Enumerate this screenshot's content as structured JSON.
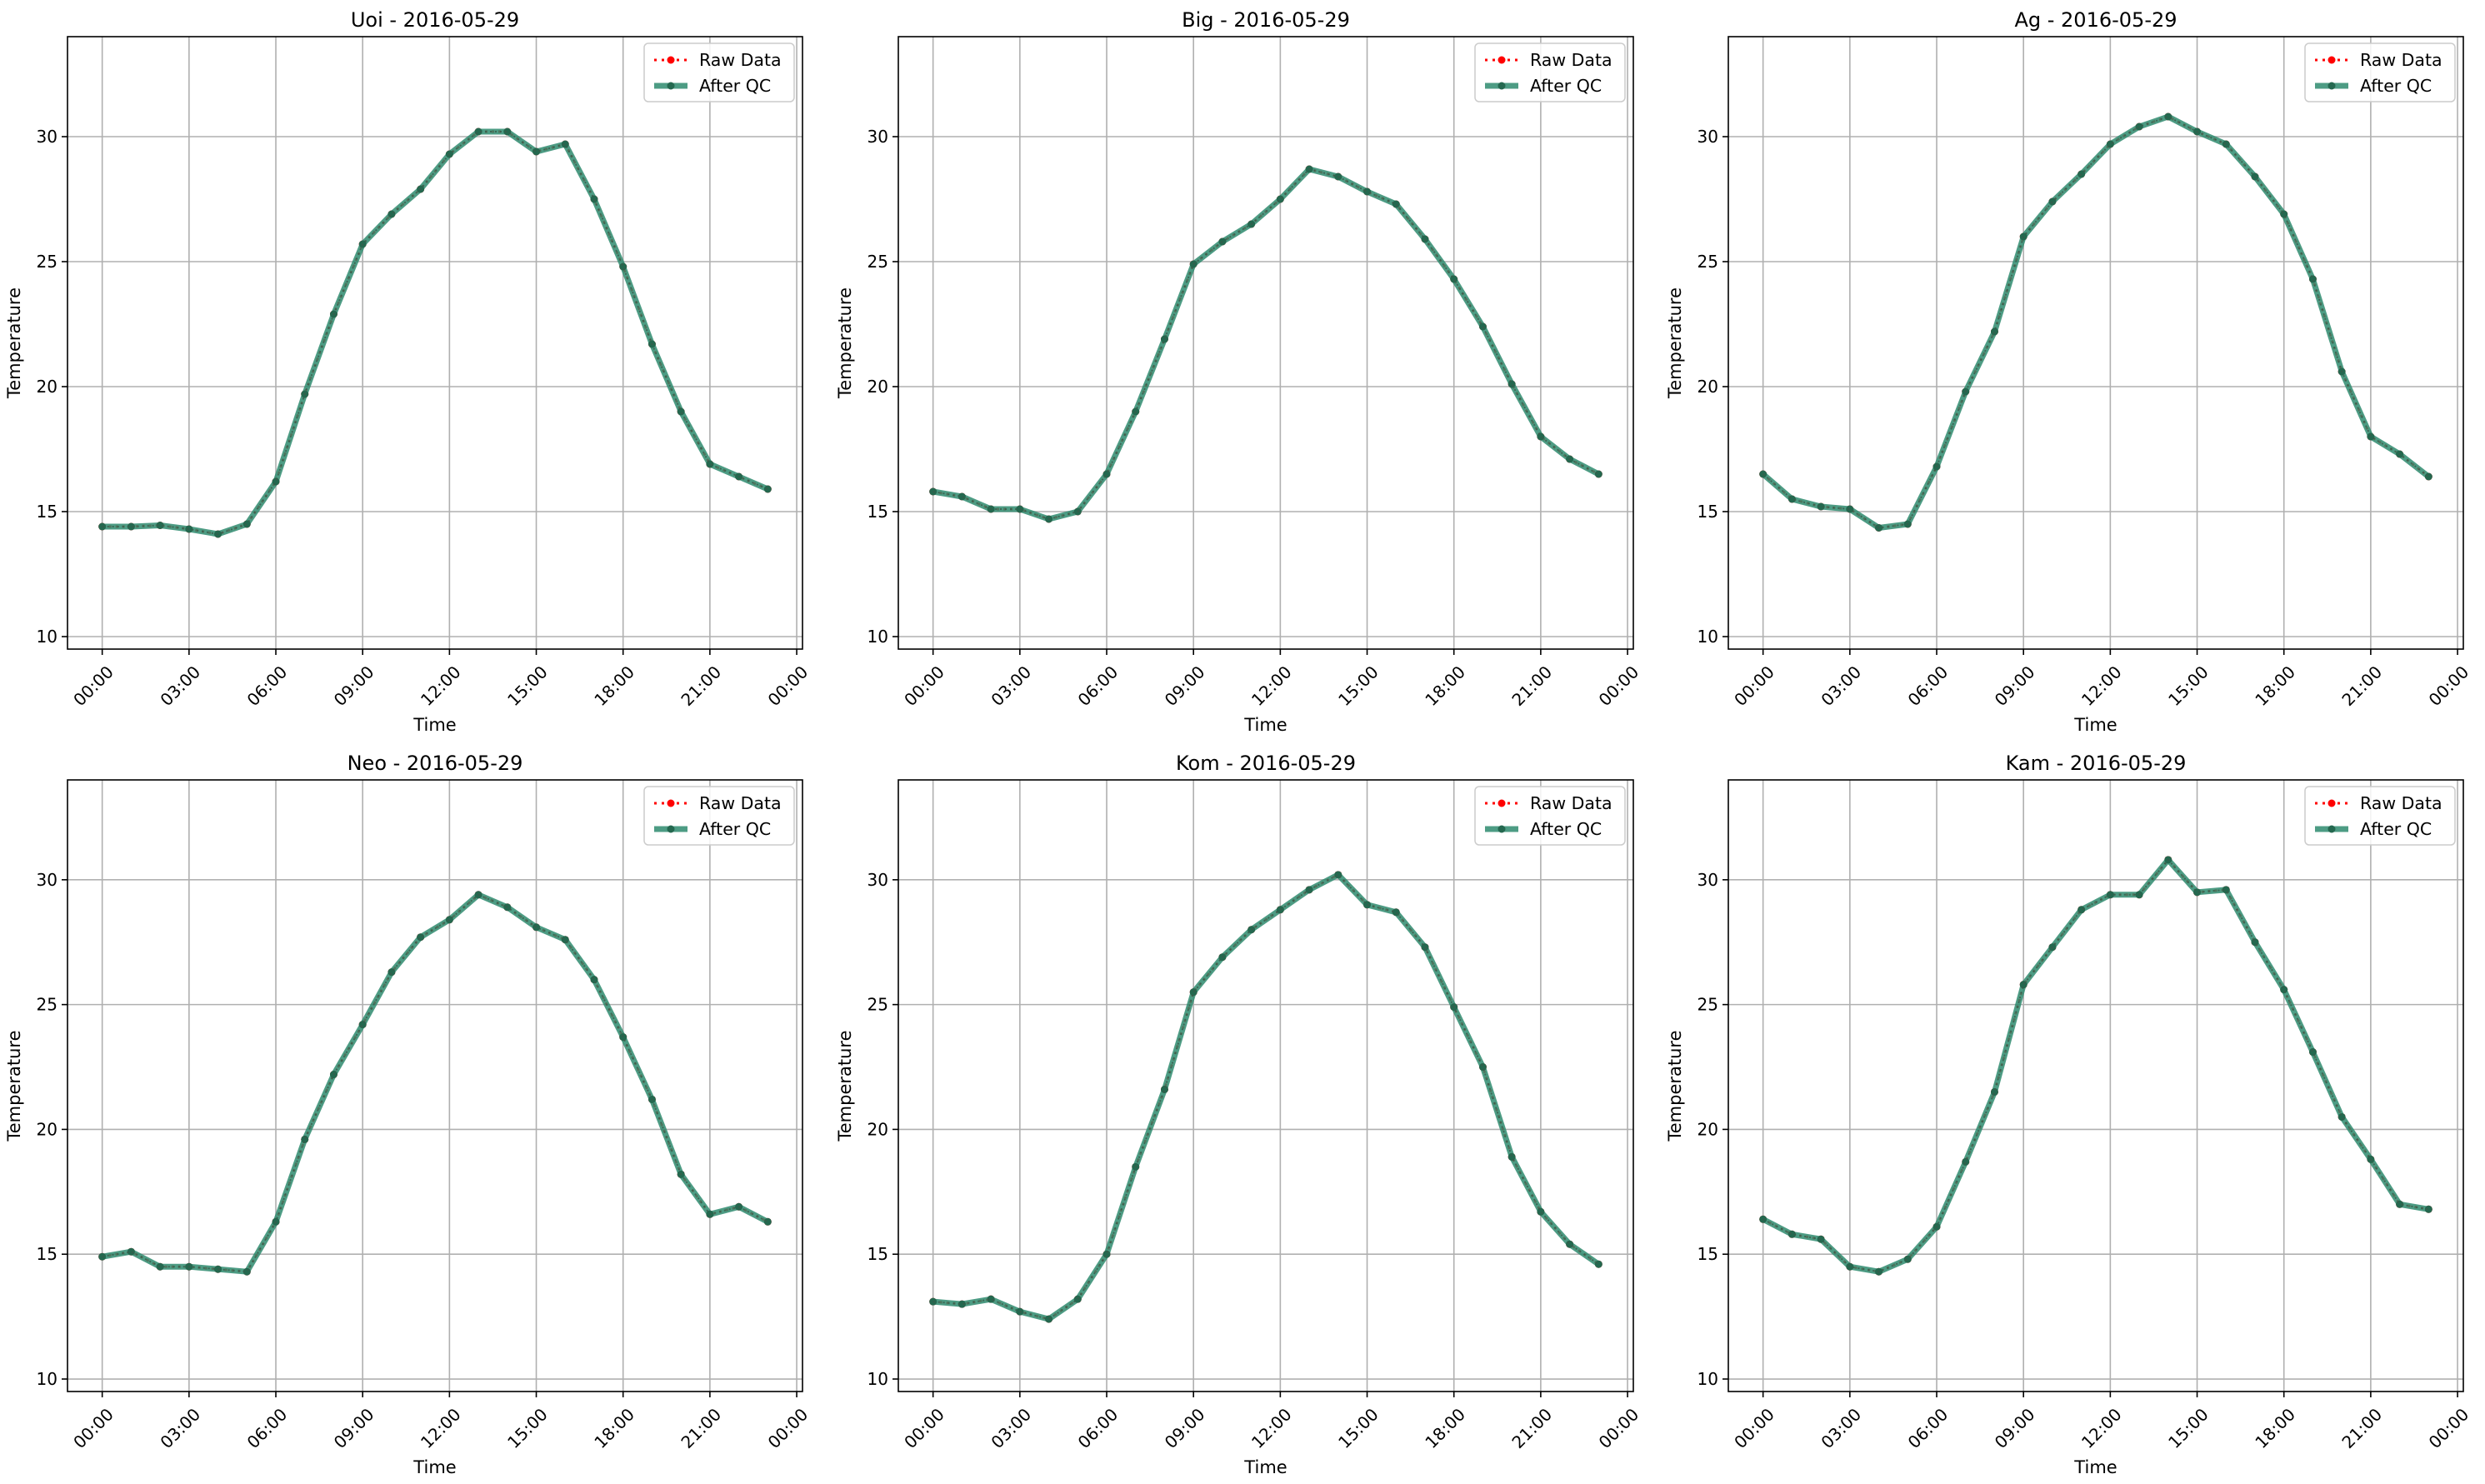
{
  "chart_data": [
    {
      "type": "line",
      "title": "Uoi - 2016-05-29",
      "xlabel": "Time",
      "ylabel": "Temperature",
      "xticks": [
        "00:00",
        "03:00",
        "06:00",
        "09:00",
        "12:00",
        "15:00",
        "18:00",
        "21:00",
        "00:00"
      ],
      "yticks": [
        10,
        15,
        20,
        25,
        30
      ],
      "ylim": [
        9.5,
        34
      ],
      "xlim": [
        -1.2,
        24.2
      ],
      "x": [
        0,
        1,
        2,
        3,
        4,
        5,
        6,
        7,
        8,
        9,
        10,
        11,
        12,
        13,
        14,
        15,
        16,
        17,
        18,
        19,
        20,
        21,
        22,
        23
      ],
      "series": [
        {
          "name": "Raw Data",
          "values": [
            14.4,
            14.4,
            14.45,
            14.3,
            14.1,
            14.5,
            16.2,
            19.7,
            22.9,
            25.7,
            26.9,
            27.9,
            29.3,
            30.2,
            30.2,
            29.4,
            29.7,
            27.5,
            24.8,
            21.7,
            19.0,
            16.9,
            16.4,
            15.9
          ]
        },
        {
          "name": "After QC",
          "values": [
            14.4,
            14.4,
            14.45,
            14.3,
            14.1,
            14.5,
            16.2,
            19.7,
            22.9,
            25.7,
            26.9,
            27.9,
            29.3,
            30.2,
            30.2,
            29.4,
            29.7,
            27.5,
            24.8,
            21.7,
            19.0,
            16.9,
            16.4,
            15.9
          ]
        }
      ],
      "grid": true,
      "legend": "top-right"
    },
    {
      "type": "line",
      "title": "Big - 2016-05-29",
      "xlabel": "Time",
      "ylabel": "Temperature",
      "xticks": [
        "00:00",
        "03:00",
        "06:00",
        "09:00",
        "12:00",
        "15:00",
        "18:00",
        "21:00",
        "00:00"
      ],
      "yticks": [
        10,
        15,
        20,
        25,
        30
      ],
      "ylim": [
        9.5,
        34
      ],
      "xlim": [
        -1.2,
        24.2
      ],
      "x": [
        0,
        1,
        2,
        3,
        4,
        5,
        6,
        7,
        8,
        9,
        10,
        11,
        12,
        13,
        14,
        15,
        16,
        17,
        18,
        19,
        20,
        21,
        22,
        23
      ],
      "series": [
        {
          "name": "Raw Data",
          "values": [
            15.8,
            15.6,
            15.1,
            15.1,
            14.7,
            15.0,
            16.5,
            19.0,
            21.9,
            24.9,
            25.8,
            26.5,
            27.5,
            28.7,
            28.4,
            27.8,
            27.3,
            25.9,
            24.3,
            22.4,
            20.1,
            18.0,
            17.1,
            16.5
          ]
        },
        {
          "name": "After QC",
          "values": [
            15.8,
            15.6,
            15.1,
            15.1,
            14.7,
            15.0,
            16.5,
            19.0,
            21.9,
            24.9,
            25.8,
            26.5,
            27.5,
            28.7,
            28.4,
            27.8,
            27.3,
            25.9,
            24.3,
            22.4,
            20.1,
            18.0,
            17.1,
            16.5
          ]
        }
      ],
      "grid": true,
      "legend": "top-right"
    },
    {
      "type": "line",
      "title": "Ag - 2016-05-29",
      "xlabel": "Time",
      "ylabel": "Temperature",
      "xticks": [
        "00:00",
        "03:00",
        "06:00",
        "09:00",
        "12:00",
        "15:00",
        "18:00",
        "21:00",
        "00:00"
      ],
      "yticks": [
        10,
        15,
        20,
        25,
        30
      ],
      "ylim": [
        9.5,
        34
      ],
      "xlim": [
        -1.2,
        24.2
      ],
      "x": [
        0,
        1,
        2,
        3,
        4,
        5,
        6,
        7,
        8,
        9,
        10,
        11,
        12,
        13,
        14,
        15,
        16,
        17,
        18,
        19,
        20,
        21,
        22,
        23
      ],
      "series": [
        {
          "name": "Raw Data",
          "values": [
            16.5,
            15.5,
            15.2,
            15.1,
            14.35,
            14.5,
            16.8,
            19.8,
            22.2,
            26.0,
            27.4,
            28.5,
            29.7,
            30.4,
            30.8,
            30.2,
            29.7,
            28.4,
            26.9,
            24.3,
            20.6,
            18.0,
            17.3,
            16.4
          ]
        },
        {
          "name": "After QC",
          "values": [
            16.5,
            15.5,
            15.2,
            15.1,
            14.35,
            14.5,
            16.8,
            19.8,
            22.2,
            26.0,
            27.4,
            28.5,
            29.7,
            30.4,
            30.8,
            30.2,
            29.7,
            28.4,
            26.9,
            24.3,
            20.6,
            18.0,
            17.3,
            16.4
          ]
        }
      ],
      "grid": true,
      "legend": "top-right"
    },
    {
      "type": "line",
      "title": "Neo - 2016-05-29",
      "xlabel": "Time",
      "ylabel": "Temperature",
      "xticks": [
        "00:00",
        "03:00",
        "06:00",
        "09:00",
        "12:00",
        "15:00",
        "18:00",
        "21:00",
        "00:00"
      ],
      "yticks": [
        10,
        15,
        20,
        25,
        30
      ],
      "ylim": [
        9.5,
        34
      ],
      "xlim": [
        -1.2,
        24.2
      ],
      "x": [
        0,
        1,
        2,
        3,
        4,
        5,
        6,
        7,
        8,
        9,
        10,
        11,
        12,
        13,
        14,
        15,
        16,
        17,
        18,
        19,
        20,
        21,
        22,
        23
      ],
      "series": [
        {
          "name": "Raw Data",
          "values": [
            14.9,
            15.1,
            14.5,
            14.5,
            14.4,
            14.3,
            16.3,
            19.6,
            22.2,
            24.2,
            26.3,
            27.7,
            28.4,
            29.4,
            28.9,
            28.1,
            27.6,
            26.0,
            23.7,
            21.2,
            18.2,
            16.6,
            16.9,
            16.3
          ]
        },
        {
          "name": "After QC",
          "values": [
            14.9,
            15.1,
            14.5,
            14.5,
            14.4,
            14.3,
            16.3,
            19.6,
            22.2,
            24.2,
            26.3,
            27.7,
            28.4,
            29.4,
            28.9,
            28.1,
            27.6,
            26.0,
            23.7,
            21.2,
            18.2,
            16.6,
            16.9,
            16.3
          ]
        }
      ],
      "grid": true,
      "legend": "top-right"
    },
    {
      "type": "line",
      "title": "Kom - 2016-05-29",
      "xlabel": "Time",
      "ylabel": "Temperature",
      "xticks": [
        "00:00",
        "03:00",
        "06:00",
        "09:00",
        "12:00",
        "15:00",
        "18:00",
        "21:00",
        "00:00"
      ],
      "yticks": [
        10,
        15,
        20,
        25,
        30
      ],
      "ylim": [
        9.5,
        34
      ],
      "xlim": [
        -1.2,
        24.2
      ],
      "x": [
        0,
        1,
        2,
        3,
        4,
        5,
        6,
        7,
        8,
        9,
        10,
        11,
        12,
        13,
        14,
        15,
        16,
        17,
        18,
        19,
        20,
        21,
        22,
        23
      ],
      "series": [
        {
          "name": "Raw Data",
          "values": [
            13.1,
            13.0,
            13.2,
            12.7,
            12.4,
            13.2,
            15.0,
            18.5,
            21.6,
            25.5,
            26.9,
            28.0,
            28.8,
            29.6,
            30.2,
            29.0,
            28.7,
            27.3,
            24.9,
            22.5,
            18.9,
            16.7,
            15.4,
            14.6
          ]
        },
        {
          "name": "After QC",
          "values": [
            13.1,
            13.0,
            13.2,
            12.7,
            12.4,
            13.2,
            15.0,
            18.5,
            21.6,
            25.5,
            26.9,
            28.0,
            28.8,
            29.6,
            30.2,
            29.0,
            28.7,
            27.3,
            24.9,
            22.5,
            18.9,
            16.7,
            15.4,
            14.6
          ]
        }
      ],
      "grid": true,
      "legend": "top-right"
    },
    {
      "type": "line",
      "title": "Kam - 2016-05-29",
      "xlabel": "Time",
      "ylabel": "Temperature",
      "xticks": [
        "00:00",
        "03:00",
        "06:00",
        "09:00",
        "12:00",
        "15:00",
        "18:00",
        "21:00",
        "00:00"
      ],
      "yticks": [
        10,
        15,
        20,
        25,
        30
      ],
      "ylim": [
        9.5,
        34
      ],
      "xlim": [
        -1.2,
        24.2
      ],
      "x": [
        0,
        1,
        2,
        3,
        4,
        5,
        6,
        7,
        8,
        9,
        10,
        11,
        12,
        13,
        14,
        15,
        16,
        17,
        18,
        19,
        20,
        21,
        22,
        23
      ],
      "series": [
        {
          "name": "Raw Data",
          "values": [
            16.4,
            15.8,
            15.6,
            14.5,
            14.3,
            14.8,
            16.1,
            18.7,
            21.5,
            25.8,
            27.3,
            28.8,
            29.4,
            29.4,
            30.8,
            29.5,
            29.6,
            27.5,
            25.6,
            23.1,
            20.5,
            18.8,
            17.0,
            16.8
          ]
        },
        {
          "name": "After QC",
          "values": [
            16.4,
            15.8,
            15.6,
            14.5,
            14.3,
            14.8,
            16.1,
            18.7,
            21.5,
            25.8,
            27.3,
            28.8,
            29.4,
            29.4,
            30.8,
            29.5,
            29.6,
            27.5,
            25.6,
            23.1,
            20.5,
            18.8,
            17.0,
            16.8
          ]
        }
      ],
      "grid": true,
      "legend": "top-right"
    }
  ],
  "colors": {
    "raw_data": "#ff0000",
    "after_qc": "#2e8b6e",
    "grid": "#b0b0b0",
    "axes": "#000000"
  }
}
